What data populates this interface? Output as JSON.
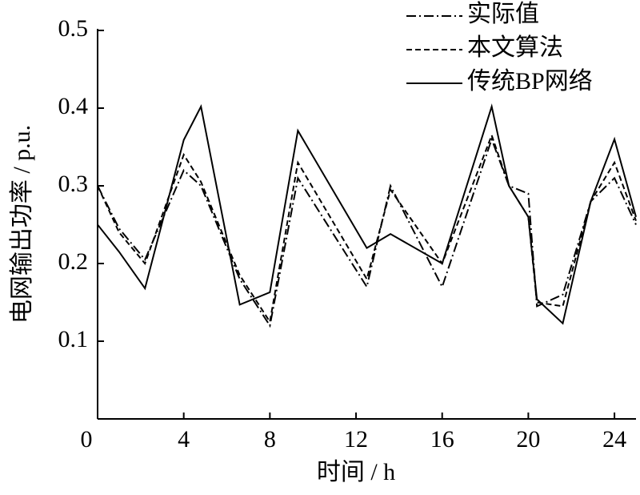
{
  "chart_data": {
    "type": "line",
    "x_label": "时间 / h",
    "y_label": "电网输出功率 / p.u.",
    "x": [
      0,
      1,
      2.2,
      4,
      4.8,
      6.6,
      8,
      9.3,
      12.5,
      13.6,
      16,
      18.3,
      19.1,
      20,
      20.4,
      21.6,
      22.9,
      24,
      25
    ],
    "series": [
      {
        "name": "实际值",
        "color": "#000000",
        "dash": "dashdot",
        "values": [
          0.3,
          0.245,
          0.205,
          0.32,
          0.3,
          0.18,
          0.12,
          0.31,
          0.17,
          0.3,
          0.17,
          0.36,
          0.3,
          0.29,
          0.145,
          0.16,
          0.28,
          0.31,
          0.25
        ]
      },
      {
        "name": "本文算法",
        "color": "#000000",
        "dash": "dashed",
        "values": [
          0.3,
          0.24,
          0.2,
          0.34,
          0.305,
          0.185,
          0.125,
          0.33,
          0.18,
          0.295,
          0.2,
          0.365,
          0.3,
          0.26,
          0.15,
          0.145,
          0.28,
          0.33,
          0.255
        ]
      },
      {
        "name": "传统BP网络",
        "color": "#000000",
        "dash": "solid",
        "values": [
          0.25,
          0.215,
          0.168,
          0.359,
          0.402,
          0.147,
          0.163,
          0.371,
          0.22,
          0.238,
          0.2,
          0.402,
          0.3,
          0.26,
          0.154,
          0.123,
          0.28,
          0.36,
          0.26
        ]
      }
    ],
    "xlim": [
      0,
      25
    ],
    "ylim": [
      0,
      0.5
    ],
    "xticks": [
      0,
      4,
      8,
      12,
      16,
      20,
      24
    ],
    "yticks": [
      0.1,
      0.2,
      0.3,
      0.4,
      0.5
    ],
    "legend": "top-right",
    "grid": false
  }
}
